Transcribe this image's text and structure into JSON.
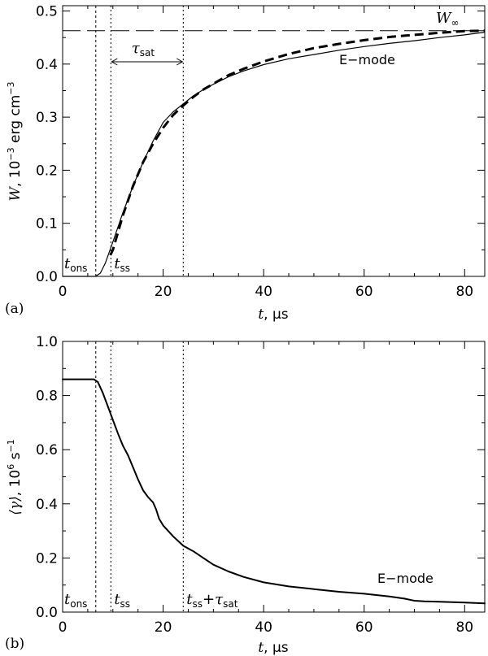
{
  "chart_data": [
    {
      "panel_label": "(a)",
      "type": "line",
      "xlabel": {
        "var": "t",
        "unit": "µs"
      },
      "ylabel": {
        "var": "W",
        "unit": "10",
        "exp": "−3",
        "rest": "erg cm",
        "exp2": "−3"
      },
      "xlim": [
        0,
        84
      ],
      "ylim": [
        0,
        0.51
      ],
      "xticks": [
        0,
        20,
        40,
        60,
        80
      ],
      "yticks": [
        0.0,
        0.1,
        0.2,
        0.3,
        0.4,
        0.5
      ],
      "ytick_labels": [
        "0.0",
        "0.1",
        "0.2",
        "0.3",
        "0.4",
        "0.5"
      ],
      "xtick_labels": [
        "0",
        "20",
        "40",
        "60",
        "80"
      ],
      "series": [
        {
          "style": "thin-solid",
          "x": [
            0,
            6.5,
            7.5,
            8.5,
            10,
            12,
            14,
            16,
            18,
            20,
            22,
            24,
            26,
            28,
            30,
            33,
            36,
            40,
            45,
            50,
            55,
            60,
            65,
            70,
            75,
            80,
            84
          ],
          "y": [
            0.0,
            0.0,
            0.006,
            0.025,
            0.065,
            0.12,
            0.17,
            0.215,
            0.255,
            0.29,
            0.31,
            0.325,
            0.34,
            0.352,
            0.362,
            0.376,
            0.387,
            0.399,
            0.41,
            0.418,
            0.426,
            0.433,
            0.439,
            0.444,
            0.45,
            0.455,
            0.46
          ]
        },
        {
          "style": "thick-dashed",
          "x": [
            9.5,
            10,
            12,
            14,
            16,
            18,
            20,
            22,
            24,
            26,
            28,
            30,
            33,
            36,
            40,
            45,
            50,
            55,
            60,
            65,
            70,
            75,
            80,
            84
          ],
          "y": [
            0.04,
            0.05,
            0.115,
            0.17,
            0.215,
            0.25,
            0.28,
            0.304,
            0.322,
            0.338,
            0.352,
            0.363,
            0.379,
            0.391,
            0.405,
            0.419,
            0.43,
            0.438,
            0.445,
            0.451,
            0.455,
            0.459,
            0.462,
            0.463
          ]
        }
      ],
      "hline": {
        "y": 0.463,
        "label_var": "W",
        "label_sub": "∞"
      },
      "vlines": [
        6.6,
        9.6,
        24.0
      ],
      "annotations": {
        "mode": "E−mode",
        "tau_var": "τ",
        "tau_sub": "sat",
        "t_ons_var": "t",
        "t_ons_sub": "ons",
        "t_ss_var": "t",
        "t_ss_sub": "ss"
      }
    },
    {
      "panel_label": "(b)",
      "type": "line",
      "xlabel": {
        "var": "t",
        "unit": "µs"
      },
      "ylabel": {
        "var": "⟨γ⟩",
        "unit": "10",
        "exp": "6",
        "rest": "s",
        "exp2": "−1"
      },
      "xlim": [
        0,
        84
      ],
      "ylim": [
        0,
        1.0
      ],
      "xticks": [
        0,
        20,
        40,
        60,
        80
      ],
      "yticks": [
        0.0,
        0.2,
        0.4,
        0.6,
        0.8,
        1.0
      ],
      "ytick_labels": [
        "0.0",
        "0.2",
        "0.4",
        "0.6",
        "0.8",
        "1.0"
      ],
      "xtick_labels": [
        "0",
        "20",
        "40",
        "60",
        "80"
      ],
      "series": [
        {
          "style": "solid",
          "x": [
            0,
            6.2,
            7,
            8,
            9,
            10,
            11,
            12,
            13,
            14,
            15,
            16,
            17,
            18,
            18.6,
            19.2,
            20,
            22,
            24,
            26,
            28,
            30,
            33,
            36,
            40,
            45,
            50,
            55,
            60,
            65,
            68,
            70,
            72,
            75,
            80,
            84
          ],
          "y": [
            0.86,
            0.86,
            0.85,
            0.81,
            0.76,
            0.71,
            0.66,
            0.615,
            0.58,
            0.535,
            0.49,
            0.45,
            0.425,
            0.405,
            0.38,
            0.345,
            0.32,
            0.28,
            0.245,
            0.225,
            0.2,
            0.175,
            0.15,
            0.13,
            0.11,
            0.095,
            0.085,
            0.075,
            0.068,
            0.058,
            0.05,
            0.042,
            0.04,
            0.038,
            0.035,
            0.032
          ]
        }
      ],
      "vlines": [
        6.6,
        9.6,
        24.0
      ],
      "annotations": {
        "mode": "E−mode",
        "t_ons_var": "t",
        "t_ons_sub": "ons",
        "t_ss_var": "t",
        "t_ss_sub": "ss",
        "t_sat_plus": "+",
        "tau_var": "τ",
        "tau_sub": "sat"
      }
    }
  ]
}
